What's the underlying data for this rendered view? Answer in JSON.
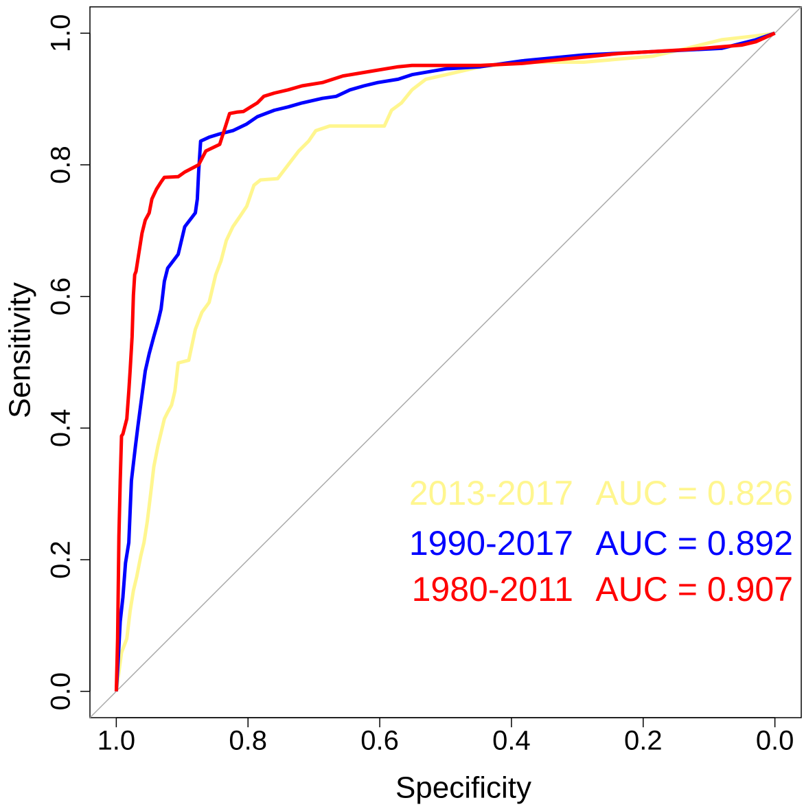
{
  "chart_data": {
    "type": "line",
    "x_label": "Specificity",
    "y_label": "Sensitivity",
    "xlim": [
      1.04,
      -0.04
    ],
    "ylim": [
      -0.04,
      1.04
    ],
    "xticks": [
      {
        "value": 1,
        "label": "1.0"
      },
      0.8,
      0.6,
      0.4,
      0.2,
      {
        "value": 0,
        "label": "0.0"
      }
    ],
    "yticks": [
      {
        "value": 0,
        "label": "0.0"
      },
      0.2,
      0.4,
      0.6,
      0.8,
      {
        "value": 1,
        "label": "1.0"
      }
    ],
    "series": [
      {
        "name": "2013-2017",
        "auc_label": "AUC = 0.826",
        "color": "#fff68f",
        "x": [
          1.0,
          0.992,
          0.984,
          0.979,
          0.974,
          0.969,
          0.963,
          0.958,
          0.953,
          0.948,
          0.943,
          0.937,
          0.932,
          0.927,
          0.922,
          0.916,
          0.911,
          0.906,
          0.89,
          0.88,
          0.87,
          0.859,
          0.849,
          0.841,
          0.833,
          0.823,
          0.812,
          0.802,
          0.791,
          0.781,
          0.755,
          0.739,
          0.723,
          0.708,
          0.697,
          0.676,
          0.593,
          0.582,
          0.567,
          0.551,
          0.53,
          0.499,
          0.447,
          0.384,
          0.29,
          0.186,
          0.134,
          0.081,
          0.029,
          0.0
        ],
        "values": [
          0.0,
          0.059,
          0.08,
          0.122,
          0.153,
          0.174,
          0.205,
          0.226,
          0.258,
          0.299,
          0.341,
          0.372,
          0.393,
          0.414,
          0.424,
          0.435,
          0.456,
          0.499,
          0.503,
          0.55,
          0.576,
          0.591,
          0.633,
          0.654,
          0.685,
          0.706,
          0.722,
          0.737,
          0.769,
          0.777,
          0.779,
          0.8,
          0.821,
          0.836,
          0.852,
          0.859,
          0.859,
          0.883,
          0.894,
          0.914,
          0.93,
          0.937,
          0.949,
          0.956,
          0.956,
          0.965,
          0.977,
          0.99,
          0.996,
          1.0
        ]
      },
      {
        "name": "1990-2017",
        "auc_label": "AUC = 0.892",
        "color": "#0000ff",
        "x": [
          1.0,
          0.997,
          0.994,
          0.99,
          0.986,
          0.981,
          0.977,
          0.971,
          0.967,
          0.961,
          0.956,
          0.95,
          0.943,
          0.937,
          0.932,
          0.927,
          0.922,
          0.906,
          0.901,
          0.896,
          0.88,
          0.877,
          0.875,
          0.872,
          0.859,
          0.843,
          0.823,
          0.802,
          0.786,
          0.76,
          0.739,
          0.718,
          0.687,
          0.666,
          0.645,
          0.624,
          0.603,
          0.572,
          0.551,
          0.499,
          0.447,
          0.384,
          0.29,
          0.186,
          0.081,
          0.029,
          0.0
        ],
        "values": [
          0.0,
          0.049,
          0.106,
          0.143,
          0.195,
          0.226,
          0.32,
          0.372,
          0.404,
          0.45,
          0.487,
          0.513,
          0.539,
          0.56,
          0.581,
          0.623,
          0.643,
          0.664,
          0.685,
          0.706,
          0.727,
          0.748,
          0.789,
          0.836,
          0.842,
          0.847,
          0.852,
          0.862,
          0.873,
          0.883,
          0.888,
          0.894,
          0.901,
          0.904,
          0.914,
          0.92,
          0.925,
          0.93,
          0.937,
          0.946,
          0.949,
          0.958,
          0.967,
          0.972,
          0.977,
          0.99,
          1.0
        ]
      },
      {
        "name": "1980-2011",
        "auc_label": "AUC = 0.907",
        "color": "#ff0000",
        "x": [
          1.0,
          0.998,
          0.996,
          0.994,
          0.992,
          0.99,
          0.984,
          0.981,
          0.979,
          0.976,
          0.974,
          0.972,
          0.97,
          0.966,
          0.961,
          0.956,
          0.95,
          0.946,
          0.939,
          0.932,
          0.927,
          0.906,
          0.896,
          0.875,
          0.864,
          0.843,
          0.828,
          0.817,
          0.807,
          0.796,
          0.786,
          0.776,
          0.76,
          0.739,
          0.718,
          0.687,
          0.656,
          0.614,
          0.572,
          0.551,
          0.447,
          0.384,
          0.238,
          0.134,
          0.05,
          0.029,
          0.0
        ],
        "values": [
          0.0,
          0.08,
          0.236,
          0.32,
          0.388,
          0.391,
          0.414,
          0.456,
          0.487,
          0.539,
          0.602,
          0.633,
          0.638,
          0.664,
          0.696,
          0.716,
          0.727,
          0.748,
          0.763,
          0.774,
          0.781,
          0.782,
          0.789,
          0.8,
          0.821,
          0.831,
          0.878,
          0.88,
          0.881,
          0.888,
          0.894,
          0.904,
          0.909,
          0.914,
          0.92,
          0.925,
          0.935,
          0.942,
          0.949,
          0.951,
          0.951,
          0.954,
          0.969,
          0.975,
          0.982,
          0.987,
          1.0
        ]
      }
    ]
  }
}
